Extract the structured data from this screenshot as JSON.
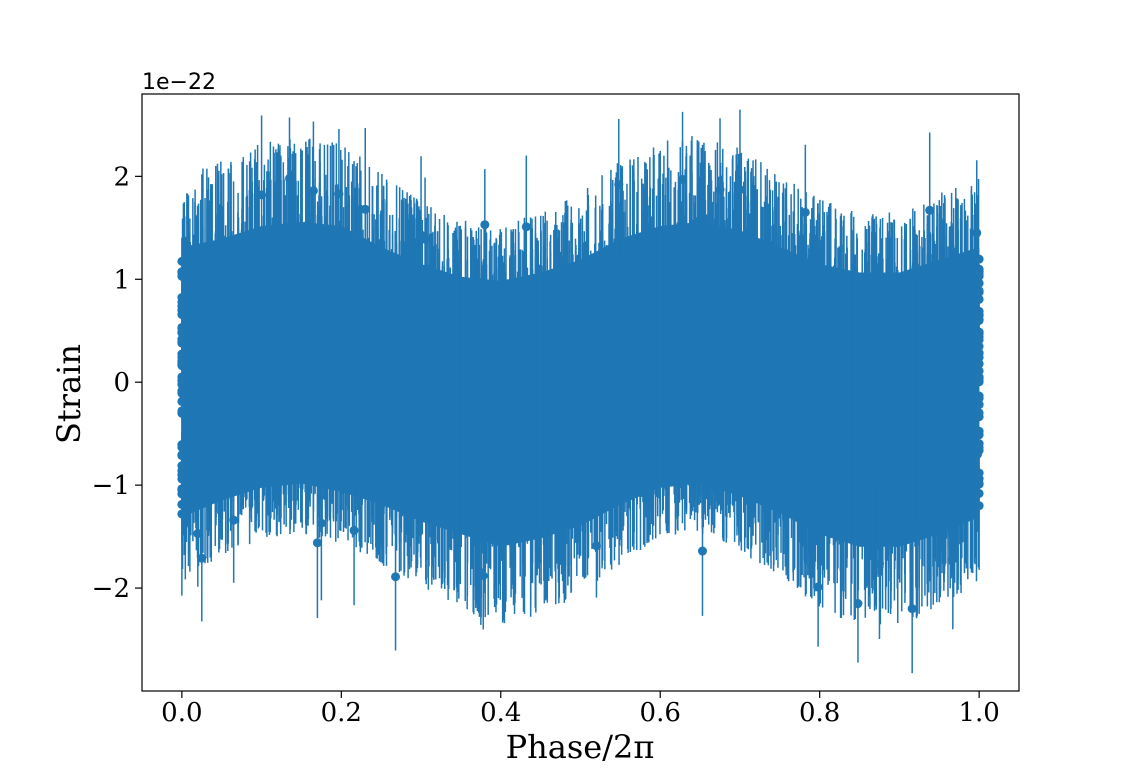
{
  "chart_data": {
    "type": "scatter",
    "style": "errorbar",
    "xlabel": "Phase/2π",
    "ylabel": "Strain",
    "y_offset_label": "1e−22",
    "y_scale": 1e-22,
    "xlim": [
      -0.05,
      1.05
    ],
    "ylim": [
      -3.0,
      2.8
    ],
    "x_ticks": [
      0.0,
      0.2,
      0.4,
      0.6,
      0.8,
      1.0
    ],
    "x_tick_labels": [
      "0.0",
      "0.2",
      "0.4",
      "0.6",
      "0.8",
      "1.0"
    ],
    "y_ticks": [
      -2,
      -1,
      0,
      1,
      2
    ],
    "y_tick_labels": [
      "−2",
      "−1",
      "0",
      "1",
      "2"
    ],
    "grid": false,
    "legend": "none",
    "colors": {
      "series": "#1f77b4"
    },
    "band_envelope": {
      "x": [
        0.0,
        0.05,
        0.1,
        0.15,
        0.2,
        0.25,
        0.3,
        0.35,
        0.4,
        0.45,
        0.5,
        0.55,
        0.6,
        0.65,
        0.7,
        0.75,
        0.8,
        0.85,
        0.9,
        0.95,
        1.0
      ],
      "upper": [
        1.6,
        1.7,
        1.85,
        1.9,
        1.85,
        1.6,
        1.4,
        1.25,
        1.2,
        1.3,
        1.45,
        1.7,
        1.85,
        1.9,
        1.8,
        1.6,
        1.4,
        1.3,
        1.3,
        1.45,
        1.6
      ],
      "lower": [
        -1.6,
        -1.4,
        -1.25,
        -1.2,
        -1.3,
        -1.45,
        -1.65,
        -1.8,
        -1.95,
        -1.85,
        -1.7,
        -1.45,
        -1.25,
        -1.2,
        -1.35,
        -1.55,
        -1.8,
        -1.95,
        -1.95,
        -1.8,
        -1.6
      ]
    },
    "outlier_points": [
      {
        "x": 0.0,
        "y": 0.7
      },
      {
        "x": 0.0,
        "y": -0.9
      },
      {
        "x": 0.0,
        "y": -1.28
      },
      {
        "x": 0.0,
        "y": 0.38
      },
      {
        "x": 0.02,
        "y": -1.47
      },
      {
        "x": 0.025,
        "y": -1.71
      },
      {
        "x": 0.065,
        "y": -1.34
      },
      {
        "x": 0.1,
        "y": 1.82
      },
      {
        "x": 0.135,
        "y": 1.98
      },
      {
        "x": 0.165,
        "y": 1.86
      },
      {
        "x": 0.17,
        "y": -1.56
      },
      {
        "x": 0.175,
        "y": -1.37
      },
      {
        "x": 0.197,
        "y": 1.83
      },
      {
        "x": 0.216,
        "y": -1.44
      },
      {
        "x": 0.23,
        "y": 1.68
      },
      {
        "x": 0.268,
        "y": -1.89
      },
      {
        "x": 0.3,
        "y": 1.43
      },
      {
        "x": 0.305,
        "y": 1.39
      },
      {
        "x": 0.375,
        "y": -1.85
      },
      {
        "x": 0.378,
        "y": -1.88
      },
      {
        "x": 0.38,
        "y": 1.53
      },
      {
        "x": 0.432,
        "y": 1.51
      },
      {
        "x": 0.52,
        "y": -1.59
      },
      {
        "x": 0.548,
        "y": 1.92
      },
      {
        "x": 0.628,
        "y": 1.97
      },
      {
        "x": 0.653,
        "y": -1.64
      },
      {
        "x": 0.675,
        "y": 1.87
      },
      {
        "x": 0.7,
        "y": 1.87
      },
      {
        "x": 0.782,
        "y": 1.65
      },
      {
        "x": 0.798,
        "y": -1.99
      },
      {
        "x": 0.848,
        "y": -2.15
      },
      {
        "x": 0.875,
        "y": -1.76
      },
      {
        "x": 0.916,
        "y": -2.2
      },
      {
        "x": 0.938,
        "y": 1.67
      },
      {
        "x": 0.967,
        "y": -1.72
      },
      {
        "x": 0.997,
        "y": 1.45
      },
      {
        "x": 1.0,
        "y": -1.2
      },
      {
        "x": 1.0,
        "y": 0.6
      },
      {
        "x": 0.998,
        "y": -0.7
      }
    ]
  }
}
